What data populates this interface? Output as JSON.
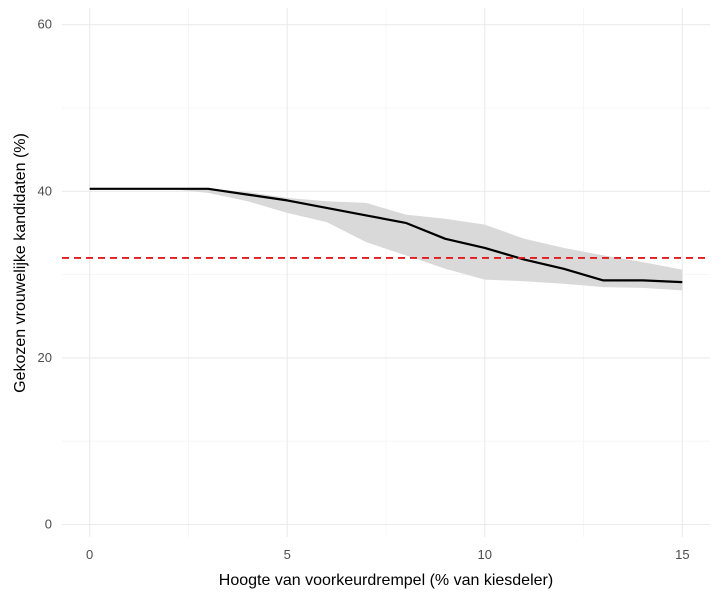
{
  "chart_data": {
    "type": "line",
    "title": "",
    "xlabel": "Hoogte van voorkeurdrempel (% van kiesdeler)",
    "ylabel": "Gekozen vrouwelijke kandidaten (%)",
    "xlim": [
      -0.7,
      15.7
    ],
    "ylim": [
      -1.5,
      62
    ],
    "x_ticks": [
      0,
      5,
      10,
      15
    ],
    "x_tick_labels": [
      "0",
      "5",
      "10",
      "15"
    ],
    "y_ticks": [
      0,
      20,
      40,
      60
    ],
    "y_tick_labels": [
      "0",
      "20",
      "40",
      "60"
    ],
    "grid": true,
    "series": [
      {
        "type": "line",
        "color": "#000000",
        "x": [
          0,
          1,
          2,
          3,
          4,
          5,
          6,
          7,
          8,
          9,
          10,
          11,
          12,
          13,
          14,
          15
        ],
        "y": [
          40.3,
          40.3,
          40.3,
          40.3,
          39.6,
          38.9,
          38.0,
          37.1,
          36.2,
          34.3,
          33.2,
          31.8,
          30.7,
          29.3,
          29.3,
          29.1
        ]
      }
    ],
    "band": {
      "color": "#d9d9d9",
      "x": [
        0,
        1,
        2,
        3,
        4,
        5,
        6,
        7,
        8,
        9,
        10,
        11,
        12,
        13,
        14,
        15
      ],
      "lower": [
        40.3,
        40.3,
        40.3,
        39.8,
        38.8,
        37.4,
        36.3,
        33.9,
        32.3,
        30.7,
        29.4,
        29.2,
        28.9,
        28.5,
        28.4,
        28.1
      ],
      "upper": [
        40.3,
        40.3,
        40.3,
        40.3,
        39.9,
        39.2,
        38.8,
        38.6,
        37.2,
        36.7,
        36.0,
        34.3,
        33.2,
        32.3,
        31.5,
        30.6
      ]
    },
    "reference_line": {
      "y": 32,
      "color": "#e31a1c",
      "style": "dashed"
    },
    "colors": {
      "background": "#ffffff",
      "grid_major": "#ebebeb",
      "grid_minor": "#f5f5f5",
      "tick_text": "#4d4d4d"
    }
  }
}
